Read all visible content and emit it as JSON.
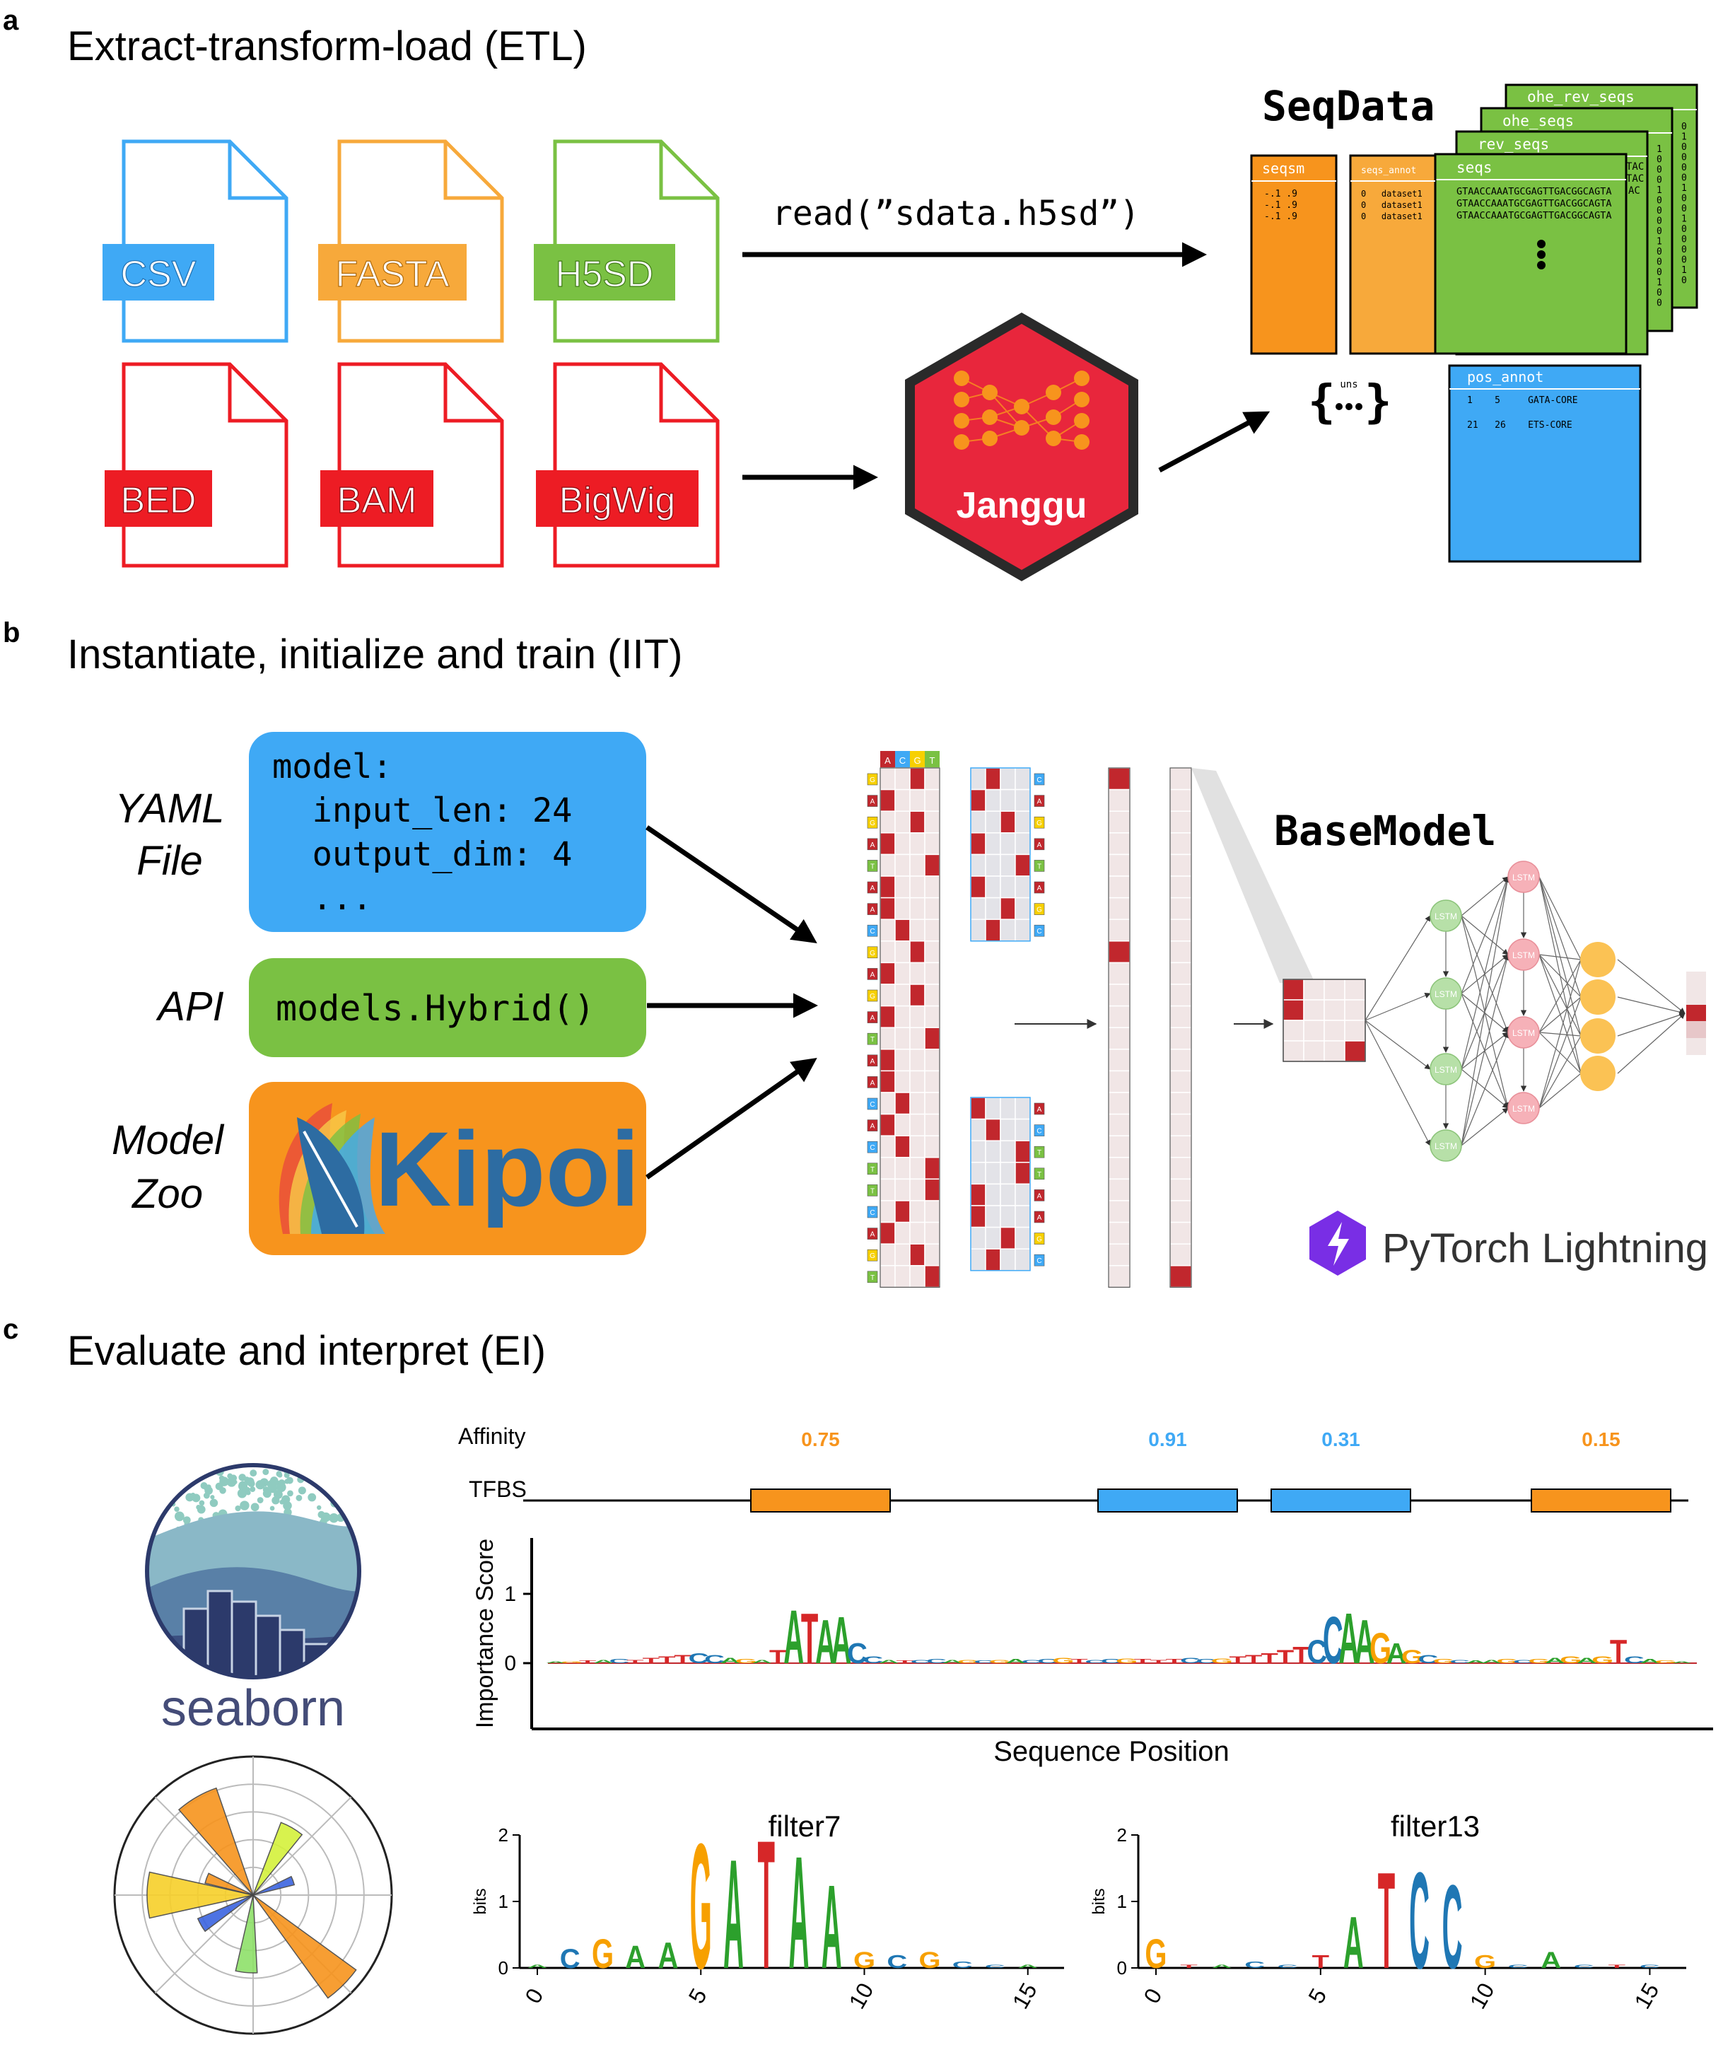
{
  "panels": {
    "a": {
      "letter": "a",
      "title": "Extract-transform-load (ETL)",
      "file_labels": [
        "CSV",
        "FASTA",
        "H5SD",
        "BED",
        "BAM",
        "BigWig"
      ],
      "read_call": "read(”sdata.h5sd”)",
      "janggu_label": "Janggu",
      "seqdata": {
        "title": "SeqData",
        "stack_labels": [
          "ohe_rev_seqs",
          "ohe_seqs",
          "rev_seqs",
          "seqs"
        ],
        "seqsm_label": "seqsm",
        "seqsm_rows": [
          "-.1 .9",
          "-.1 .9",
          "-.1 .9"
        ],
        "seqs_annot_label": "seqs_annot",
        "seqs_annot_rows": [
          "0   dataset1",
          "0   dataset1",
          "0   dataset1"
        ],
        "seqs_rows": [
          "GTAACCAAATGCGAGTTGACGGCAGTA",
          "GTAACCAAATGCGAGTTGACGGCAGTA",
          "GTAACCAAATGCGAGTTGACGGCAGTA"
        ],
        "peek_rows": [
          "TAC",
          "TAC",
          "AC"
        ],
        "ohe_column": [
          "1",
          "0",
          "0",
          "0",
          "1",
          "0",
          "0",
          "0",
          "0",
          "1",
          "0",
          "0",
          "0",
          "1",
          "0",
          "0"
        ],
        "ohe_rev_column": [
          "0",
          "1",
          "0",
          "0",
          "0",
          "0",
          "1",
          "0",
          "0",
          "1",
          "0",
          "0",
          "0",
          "0",
          "1",
          "0"
        ],
        "uns_label": "uns",
        "pos_annot_label": "pos_annot",
        "pos_annot_rows": [
          "1    5     GATA-CORE",
          "21   26    ETS-CORE"
        ]
      }
    },
    "b": {
      "letter": "b",
      "title": "Instantiate, initialize and train (IIT)",
      "yaml_label": [
        "YAML",
        "File"
      ],
      "yaml_code": [
        "model:",
        "  input_len: 24",
        "  output_dim: 4",
        "  ..."
      ],
      "api_label": "API",
      "api_code": "models.Hybrid()",
      "zoo_label": [
        "Model",
        "Zoo"
      ],
      "kipoi_label": "Kipoi",
      "one_hot_header": [
        "A",
        "C",
        "G",
        "T"
      ],
      "sequence": [
        "G",
        "A",
        "G",
        "A",
        "T",
        "A",
        "A",
        "C",
        "G",
        "A",
        "G",
        "A",
        "T",
        "A",
        "A",
        "C",
        "A",
        "C",
        "T",
        "T",
        "C",
        "A",
        "G",
        "T"
      ],
      "filter_top_bases": [
        "C",
        "A",
        "G",
        "A",
        "T",
        "A",
        "G",
        "C"
      ],
      "filter_bottom_bases": [
        "A",
        "C",
        "T",
        "T",
        "A",
        "A",
        "G",
        "C"
      ],
      "basemodel_title": "BaseModel",
      "lstm_label": "LSTM",
      "lightning_label": "PyTorch Lightning"
    },
    "c": {
      "letter": "c",
      "title": "Evaluate and interpret (EI)",
      "seaborn_label": "seaborn",
      "affinity_label": "Affinity",
      "tfbs_label": "TFBS",
      "affinities": [
        {
          "value": "0.75",
          "color": "#f7941d"
        },
        {
          "value": "0.91",
          "color": "#3fa9f5"
        },
        {
          "value": "0.31",
          "color": "#3fa9f5"
        },
        {
          "value": "0.15",
          "color": "#f7941d"
        }
      ],
      "importance_ylabel": "Importance Score",
      "importance_xlabel": "Sequence Position",
      "importance_yticks": [
        "0",
        "1"
      ],
      "motif_ylabel": "bits",
      "motif_yticks": [
        "0",
        "1",
        "2"
      ],
      "motif_xticks": [
        "0",
        "5",
        "10",
        "15"
      ]
    }
  },
  "chart_data": [
    {
      "type": "area",
      "title": "",
      "xlabel": "Sequence Position",
      "ylabel": "Importance Score",
      "ylim": [
        -0.6,
        1.25
      ],
      "series": [
        {
          "values": [
            0.02,
            0.03,
            0.04,
            0.05,
            0.06,
            0.05,
            0.08,
            0.1,
            0.12,
            0.15,
            0.12,
            0.08,
            0.06,
            0.05,
            0.2,
            0.8,
            0.75,
            0.65,
            0.7,
            0.3,
            0.1,
            0.05,
            0.04,
            0.05,
            0.06,
            0.05,
            0.05,
            0.04,
            0.05,
            0.06,
            0.05,
            0.06,
            0.08,
            0.06,
            0.05,
            0.06,
            0.07,
            0.06,
            0.05,
            0.06,
            0.08,
            0.06,
            0.07,
            0.1,
            0.12,
            0.15,
            0.2,
            0.25,
            0.35,
            0.7,
            0.75,
            0.65,
            0.45,
            0.3,
            0.2,
            0.12,
            0.06,
            0.05,
            0.04,
            0.05,
            0.06,
            0.05,
            0.06,
            0.08,
            0.1,
            0.08,
            0.1,
            0.35,
            0.1,
            0.06,
            0.04,
            0.03
          ]
        }
      ]
    },
    {
      "type": "bar",
      "title": "filter7",
      "xlabel": "",
      "ylabel": "bits",
      "ylim": [
        0,
        2.1
      ],
      "categories": [
        "0",
        "1",
        "2",
        "3",
        "4",
        "5",
        "6",
        "7",
        "8",
        "9",
        "10",
        "11",
        "12",
        "13",
        "14",
        "15"
      ],
      "values": [
        0.05,
        0.3,
        0.45,
        0.35,
        0.4,
        1.95,
        1.7,
        2.0,
        1.75,
        1.3,
        0.25,
        0.2,
        0.25,
        0.1,
        0.05,
        0.05
      ]
    },
    {
      "type": "bar",
      "title": "filter13",
      "xlabel": "",
      "ylabel": "bits",
      "ylim": [
        0,
        2.1
      ],
      "categories": [
        "0",
        "1",
        "2",
        "3",
        "4",
        "5",
        "6",
        "7",
        "8",
        "9",
        "10",
        "11",
        "12",
        "13",
        "14",
        "15"
      ],
      "values": [
        0.45,
        0.05,
        0.05,
        0.1,
        0.05,
        0.2,
        0.8,
        1.5,
        1.5,
        1.3,
        0.2,
        0.05,
        0.25,
        0.05,
        0.05,
        0.05
      ]
    }
  ]
}
